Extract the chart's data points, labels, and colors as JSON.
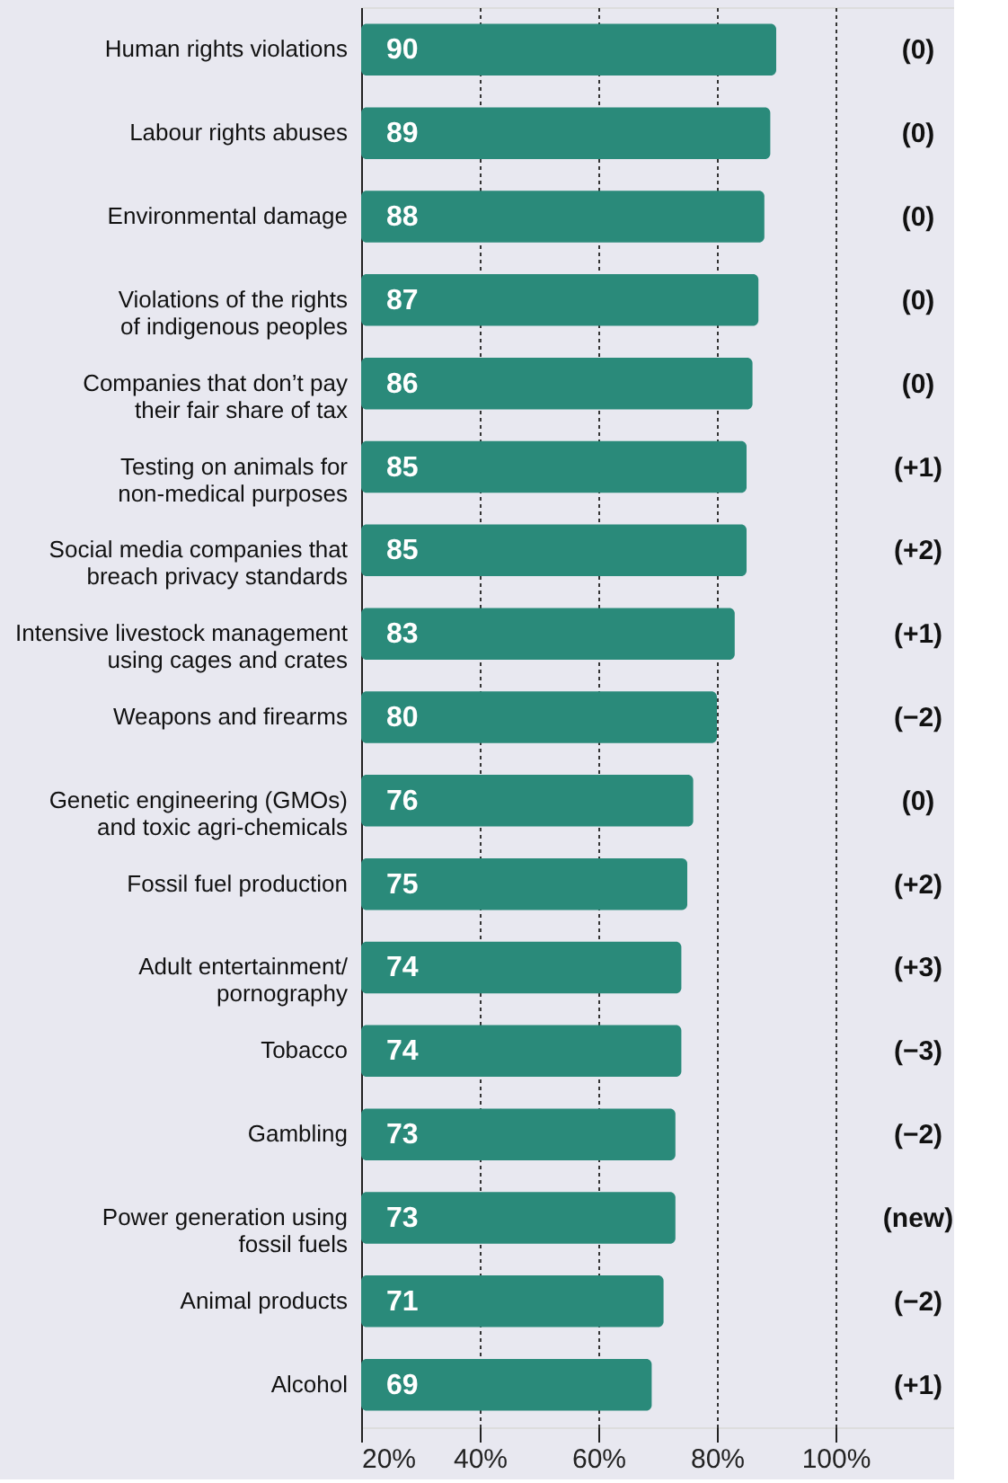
{
  "chart_data": {
    "type": "bar",
    "orientation": "horizontal",
    "categories": [
      "Human rights violations",
      "Labour rights abuses",
      "Environmental damage",
      "Violations of the rights\nof indigenous peoples",
      "Companies that don’t pay\ntheir fair share of tax",
      "Testing on animals for\nnon-medical purposes",
      "Social media companies that\nbreach privacy standards",
      "Intensive livestock management\nusing cages and crates",
      "Weapons and firearms",
      "Genetic engineering (GMOs)\nand toxic agri-chemicals",
      "Fossil fuel production",
      "Adult entertainment/\npornography",
      "Tobacco",
      "Gambling",
      "Power generation using\nfossil fuels",
      "Animal products",
      "Alcohol"
    ],
    "values": [
      90,
      89,
      88,
      87,
      86,
      85,
      85,
      83,
      80,
      76,
      75,
      74,
      74,
      73,
      73,
      71,
      69
    ],
    "color": "#2a8a7a",
    "data_labels": true,
    "xlim": [
      20,
      120
    ],
    "xticks": [
      {
        "value": 20,
        "label": "20%"
      },
      {
        "value": 40,
        "label": "40%"
      },
      {
        "value": 60,
        "label": "60%"
      },
      {
        "value": 80,
        "label": "80%"
      },
      {
        "value": 100,
        "label": "100%"
      }
    ],
    "grid": "x",
    "annotations": [
      "(0)",
      "(0)",
      "(0)",
      "(0)",
      "(0)",
      "(+1)",
      "(+2)",
      "(+1)",
      "(−2)",
      "(0)",
      "(+2)",
      "(+3)",
      "(−3)",
      "(−2)",
      "(new)",
      "(−2)",
      "(+1)"
    ]
  }
}
